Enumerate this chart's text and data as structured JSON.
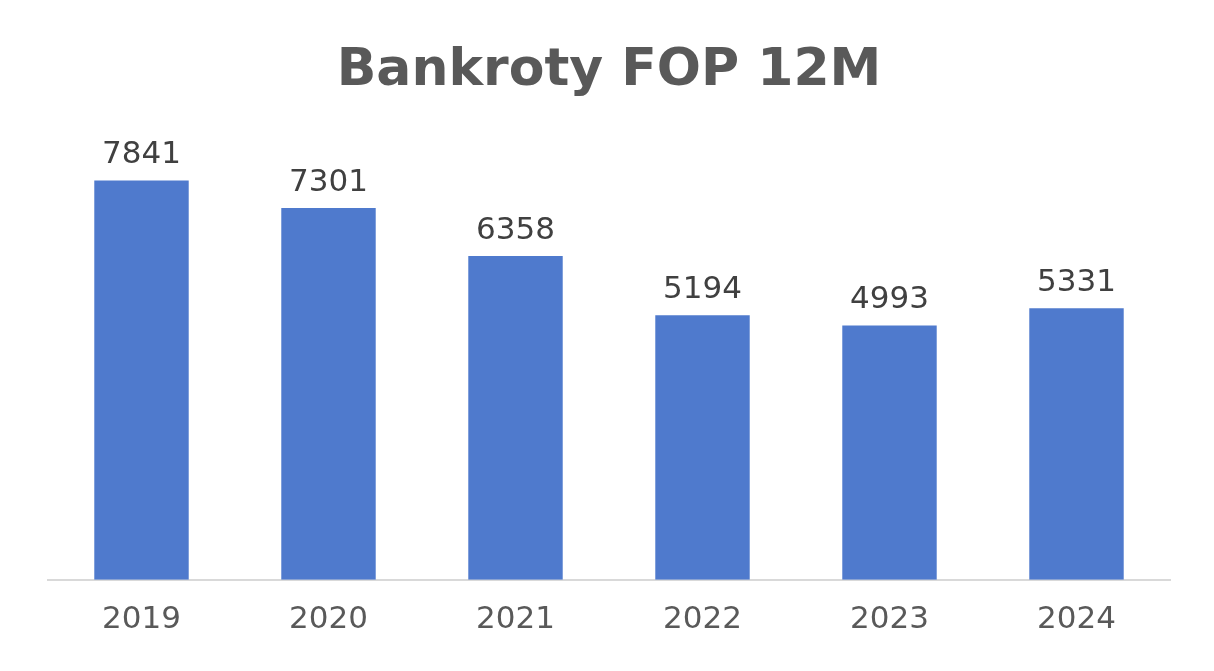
{
  "chart_data": {
    "type": "bar",
    "title": "Bankroty FOP 12M",
    "categories": [
      "2019",
      "2020",
      "2021",
      "2022",
      "2023",
      "2024"
    ],
    "values": [
      7841,
      7301,
      6358,
      5194,
      4993,
      5331
    ],
    "color": "#4f7acd",
    "data_labels": true
  }
}
